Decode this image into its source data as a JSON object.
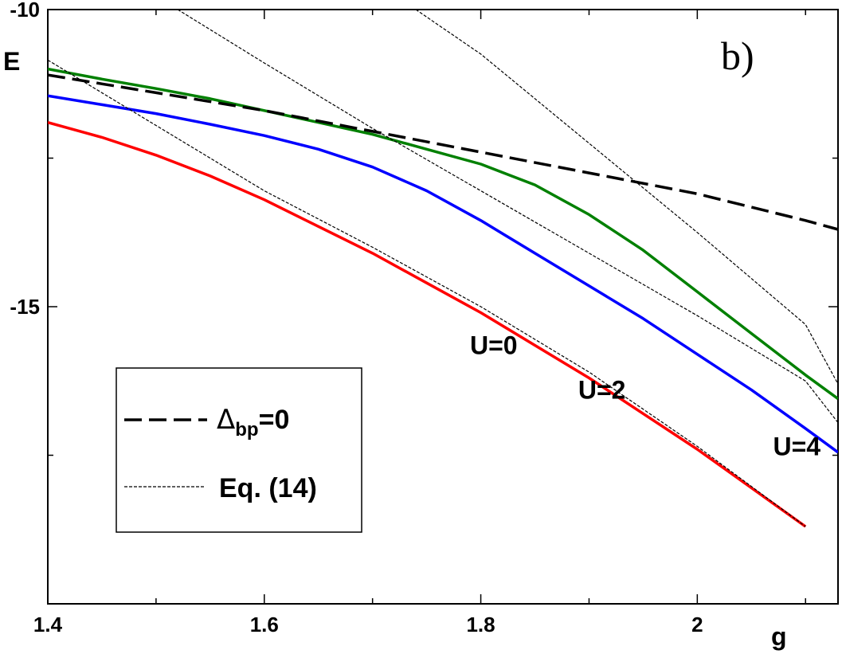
{
  "chart_data": {
    "type": "line",
    "title": "",
    "xlabel": "g",
    "ylabel": "E",
    "xlim": [
      1.4,
      2.13
    ],
    "ylim": [
      -20,
      -10
    ],
    "x_ticks": [
      1.4,
      1.6,
      1.8,
      2.0
    ],
    "x_tick_labels": [
      "1.4",
      "1.6",
      "1.8",
      "2"
    ],
    "y_ticks": [
      -10,
      -15
    ],
    "y_tick_labels": [
      "-10",
      "-15"
    ],
    "grid": false,
    "panel_label": "b)",
    "series": [
      {
        "name": "U=0",
        "color": "#ff0000",
        "style": "solid",
        "x": [
          1.4,
          1.45,
          1.5,
          1.55,
          1.6,
          1.65,
          1.7,
          1.75,
          1.8,
          1.85,
          1.9,
          1.95,
          2.0,
          2.05,
          2.1
        ],
        "y": [
          -11.9,
          -12.15,
          -12.45,
          -12.8,
          -13.2,
          -13.65,
          -14.1,
          -14.6,
          -15.1,
          -15.65,
          -16.2,
          -16.8,
          -17.4,
          -18.05,
          -18.7
        ]
      },
      {
        "name": "U=2",
        "color": "#0000ff",
        "style": "solid",
        "x": [
          1.4,
          1.45,
          1.5,
          1.55,
          1.6,
          1.65,
          1.7,
          1.75,
          1.8,
          1.85,
          1.9,
          1.95,
          2.0,
          2.05,
          2.1,
          2.13
        ],
        "y": [
          -11.45,
          -11.6,
          -11.75,
          -11.93,
          -12.12,
          -12.35,
          -12.65,
          -13.05,
          -13.55,
          -14.1,
          -14.65,
          -15.2,
          -15.8,
          -16.4,
          -17.05,
          -17.45
        ]
      },
      {
        "name": "U=4",
        "color": "#008000",
        "style": "solid",
        "x": [
          1.4,
          1.45,
          1.5,
          1.55,
          1.6,
          1.65,
          1.7,
          1.75,
          1.8,
          1.85,
          1.9,
          1.95,
          2.0,
          2.05,
          2.1,
          2.13
        ],
        "y": [
          -11.0,
          -11.17,
          -11.33,
          -11.5,
          -11.7,
          -11.9,
          -12.1,
          -12.35,
          -12.6,
          -12.95,
          -13.45,
          -14.05,
          -14.75,
          -15.45,
          -16.15,
          -16.55
        ]
      },
      {
        "name": "Δbp=0",
        "color": "#000000",
        "style": "dashed",
        "x": [
          1.4,
          1.5,
          1.6,
          1.7,
          1.8,
          1.9,
          2.0,
          2.1,
          2.13
        ],
        "y": [
          -11.1,
          -11.4,
          -11.7,
          -12.05,
          -12.4,
          -12.75,
          -13.1,
          -13.55,
          -13.7
        ]
      },
      {
        "name": "Eq. (14), U=0",
        "color": "#000000",
        "style": "dotted",
        "x": [
          1.4,
          1.5,
          1.6,
          1.7,
          1.8,
          1.9,
          2.0,
          2.1
        ],
        "y": [
          -10.85,
          -11.95,
          -13.05,
          -14.0,
          -15.0,
          -16.1,
          -17.35,
          -18.7
        ]
      },
      {
        "name": "Eq. (14), U=2",
        "color": "#000000",
        "style": "dotted",
        "x": [
          1.52,
          1.6,
          1.7,
          1.8,
          1.9,
          2.0,
          2.1,
          2.13
        ],
        "y": [
          -10.0,
          -10.9,
          -12.0,
          -13.05,
          -14.1,
          -15.15,
          -16.25,
          -16.95
        ]
      },
      {
        "name": "Eq. (14), U=4",
        "color": "#000000",
        "style": "dotted",
        "x": [
          1.74,
          1.8,
          1.9,
          2.0,
          2.1,
          2.13
        ],
        "y": [
          -10.0,
          -10.75,
          -12.25,
          -13.75,
          -15.3,
          -16.3
        ]
      }
    ],
    "annotations": [
      {
        "text": "U=0",
        "x": 1.79,
        "y": -15.8
      },
      {
        "text": "U=2",
        "x": 1.89,
        "y": -16.55
      },
      {
        "text": "U=4",
        "x": 2.07,
        "y": -17.5
      }
    ],
    "legend": {
      "placement": "bottom-left",
      "entries": [
        {
          "style": "dashed",
          "symbol": "Δ",
          "sub": "bp",
          "rest": "=0"
        },
        {
          "style": "dotted",
          "text": "Eq. (14)"
        }
      ]
    }
  }
}
